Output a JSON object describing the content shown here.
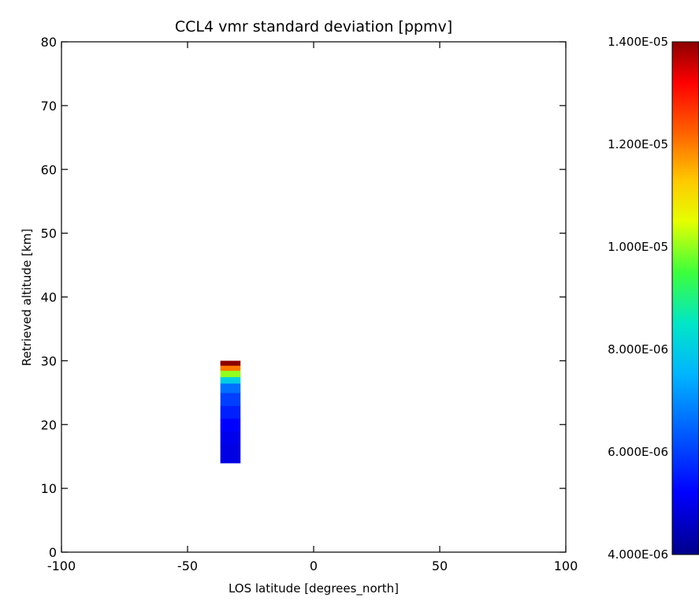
{
  "chart_data": {
    "type": "heatmap",
    "title": "CCL4 vmr standard deviation [ppmv]",
    "xlabel": "LOS latitude [degrees_north]",
    "ylabel": "Retrieved altitude [km]",
    "xlim": [
      -100,
      100
    ],
    "ylim": [
      0,
      80
    ],
    "x_ticks": [
      "-100",
      "-50",
      "0",
      "50",
      "100"
    ],
    "y_ticks": [
      "0",
      "10",
      "20",
      "30",
      "40",
      "50",
      "60",
      "70",
      "80"
    ],
    "colorbar": {
      "range": [
        4e-06,
        1.4e-05
      ],
      "labels": [
        "4.000E-06",
        "6.000E-06",
        "8.000E-06",
        "1.000E-05",
        "1.200E-05",
        "1.400E-05"
      ],
      "colormap": "rainbow (dark blue to dark red)"
    },
    "cells": [
      {
        "x": [
          -37,
          -29
        ],
        "y": [
          14,
          17
        ],
        "value": 4.9e-06
      },
      {
        "x": [
          -37,
          -29
        ],
        "y": [
          17,
          19
        ],
        "value": 5e-06
      },
      {
        "x": [
          -37,
          -29
        ],
        "y": [
          19,
          21
        ],
        "value": 5.2e-06
      },
      {
        "x": [
          -37,
          -29
        ],
        "y": [
          21,
          23
        ],
        "value": 5.6e-06
      },
      {
        "x": [
          -37,
          -29
        ],
        "y": [
          23,
          25
        ],
        "value": 6e-06
      },
      {
        "x": [
          -37,
          -29
        ],
        "y": [
          25,
          26.5
        ],
        "value": 6.6e-06
      },
      {
        "x": [
          -37,
          -29
        ],
        "y": [
          26.5,
          27.5
        ],
        "value": 8e-06
      },
      {
        "x": [
          -37,
          -29
        ],
        "y": [
          27.5,
          28.5
        ],
        "value": 1e-05
      },
      {
        "x": [
          -37,
          -29
        ],
        "y": [
          28.5,
          29.3
        ],
        "value": 1.2e-05
      },
      {
        "x": [
          -37,
          -29
        ],
        "y": [
          29.3,
          30
        ],
        "value": 1.4e-05
      }
    ]
  }
}
